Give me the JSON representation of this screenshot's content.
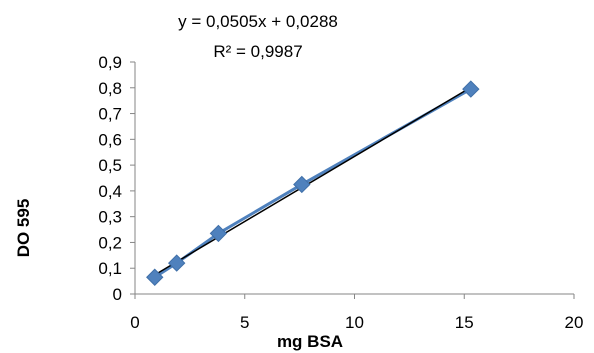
{
  "chart_data": {
    "type": "scatter",
    "title": "",
    "xlabel": "mg BSA",
    "ylabel": "DO 595",
    "xlim": [
      0,
      20
    ],
    "ylim": [
      0,
      0.9
    ],
    "x_ticks": [
      "0",
      "5",
      "10",
      "15",
      "20"
    ],
    "y_ticks": [
      "0",
      "0,1",
      "0,2",
      "0,3",
      "0,4",
      "0,5",
      "0,6",
      "0,7",
      "0,8",
      "0,9"
    ],
    "grid": false,
    "legend": "none",
    "series": [
      {
        "x": [
          0.9,
          1.9,
          3.8,
          7.6,
          15.3
        ],
        "y": [
          0.065,
          0.12,
          0.235,
          0.425,
          0.795
        ],
        "color": "#4f81bd",
        "marker": "diamond",
        "line": true
      }
    ],
    "trendline": {
      "type": "linear",
      "slope": 0.0505,
      "intercept": 0.0288,
      "color": "#000000",
      "equation": "y = 0,0505x + 0,0288",
      "r_squared": "R² = 0,9987"
    }
  }
}
